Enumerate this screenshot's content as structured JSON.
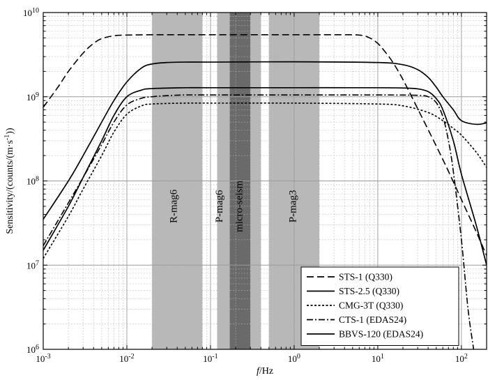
{
  "chart_data": {
    "type": "line",
    "xlabel_italic": "f",
    "xlabel_unit": "/Hz",
    "ylabel_prefix": "Sensitivity/(counts/(m·s",
    "ylabel_sup": "-1",
    "ylabel_suffix": "))",
    "x_scale": "log",
    "y_scale": "log",
    "xlim": [
      0.001,
      200
    ],
    "ylim": [
      1000000,
      10000000000
    ],
    "grid": true,
    "legend_position": "bottom-right",
    "x_ticks": [
      {
        "value": 0.001,
        "base": "10",
        "exp": "-3"
      },
      {
        "value": 0.01,
        "base": "10",
        "exp": "-2"
      },
      {
        "value": 0.1,
        "base": "10",
        "exp": "-1"
      },
      {
        "value": 1,
        "base": "10",
        "exp": "0"
      },
      {
        "value": 10,
        "base": "10",
        "exp": "1"
      },
      {
        "value": 100,
        "base": "10",
        "exp": "2"
      }
    ],
    "y_ticks": [
      {
        "value": 1000000,
        "base": "10",
        "exp": "6"
      },
      {
        "value": 10000000,
        "base": "10",
        "exp": "7"
      },
      {
        "value": 100000000,
        "base": "10",
        "exp": "8"
      },
      {
        "value": 1000000000,
        "base": "10",
        "exp": "9"
      },
      {
        "value": 10000000000,
        "base": "10",
        "exp": "10"
      }
    ],
    "bands": [
      {
        "label": "R-mag6",
        "x_range": [
          0.02,
          0.08
        ],
        "color": "#b8b8b8",
        "label_x": 0.037,
        "label_y": 50000000
      },
      {
        "label": "P-mag6",
        "x_range": [
          0.12,
          0.4
        ],
        "color": "#b8b8b8",
        "label_x": 0.13,
        "label_y": 50000000
      },
      {
        "label": "micro-seism",
        "x_range": [
          0.17,
          0.3
        ],
        "color": "#6a6a6a",
        "label_x": 0.225,
        "label_y": 50000000
      },
      {
        "label": "P-mag3",
        "x_range": [
          0.5,
          2
        ],
        "color": "#b8b8b8",
        "label_x": 0.98,
        "label_y": 50000000
      }
    ],
    "series": [
      {
        "name": "STS-1 (Q330)",
        "dash": "dashed",
        "x": [
          0.001,
          0.0015,
          0.002,
          0.003,
          0.004,
          0.005,
          0.007,
          0.01,
          0.02,
          0.05,
          0.1,
          0.5,
          1,
          3,
          6,
          8,
          10,
          12,
          15,
          20,
          30,
          50,
          70,
          100,
          150,
          200
        ],
        "y": [
          750000000,
          1300000000,
          2000000000,
          3300000000,
          4300000000,
          4900000000,
          5300000000,
          5400000000,
          5450000000,
          5450000000,
          5450000000,
          5450000000,
          5450000000,
          5450000000,
          5400000000,
          5000000000,
          4300000000,
          3500000000,
          2600000000,
          1600000000,
          720000000,
          260000000,
          130000000,
          60000000,
          25000000,
          13000000
        ]
      },
      {
        "name": "STS-2.5 (Q330)",
        "dash": "solid",
        "x": [
          0.001,
          0.002,
          0.003,
          0.005,
          0.007,
          0.01,
          0.015,
          0.02,
          0.03,
          0.05,
          0.1,
          1,
          10,
          20,
          30,
          40,
          50,
          60,
          80,
          100,
          150,
          200
        ],
        "y": [
          35000000,
          100000000,
          200000000,
          500000000,
          900000000,
          1500000000,
          2200000000,
          2450000000,
          2550000000,
          2580000000,
          2580000000,
          2600000000,
          2550000000,
          2400000000,
          2100000000,
          1700000000,
          1300000000,
          1000000000,
          700000000,
          520000000,
          470000000,
          490000000
        ]
      },
      {
        "name": "CMG-3T (Q330)",
        "dash": "dotted",
        "x": [
          0.001,
          0.002,
          0.003,
          0.005,
          0.007,
          0.01,
          0.015,
          0.02,
          0.05,
          0.1,
          1,
          10,
          20,
          40,
          60,
          80,
          100,
          150,
          200
        ],
        "y": [
          12000000,
          38000000,
          80000000,
          200000000,
          380000000,
          620000000,
          780000000,
          820000000,
          840000000,
          840000000,
          840000000,
          820000000,
          780000000,
          650000000,
          520000000,
          420000000,
          350000000,
          220000000,
          145000000
        ]
      },
      {
        "name": "CTS-1 (EDAS24)",
        "dash": "dashdot",
        "x": [
          0.001,
          0.002,
          0.003,
          0.005,
          0.007,
          0.01,
          0.015,
          0.02,
          0.03,
          0.05,
          0.1,
          1,
          10,
          30,
          40,
          50,
          60,
          70,
          80,
          100,
          120,
          140
        ],
        "y": [
          17000000,
          55000000,
          110000000,
          270000000,
          500000000,
          800000000,
          960000000,
          1000000000,
          1030000000,
          1050000000,
          1050000000,
          1050000000,
          1050000000,
          1040000000,
          1000000000,
          850000000,
          580000000,
          300000000,
          130000000,
          20000000,
          3000000,
          1000000
        ]
      },
      {
        "name": "BBVS-120 (EDAS24)",
        "dash": "solid",
        "x": [
          0.001,
          0.002,
          0.003,
          0.005,
          0.007,
          0.01,
          0.015,
          0.02,
          0.05,
          0.1,
          1,
          10,
          20,
          30,
          40,
          50,
          60,
          80,
          100,
          150,
          200
        ],
        "y": [
          15000000,
          50000000,
          110000000,
          300000000,
          600000000,
          1000000000,
          1200000000,
          1250000000,
          1280000000,
          1280000000,
          1280000000,
          1280000000,
          1270000000,
          1240000000,
          1150000000,
          950000000,
          700000000,
          300000000,
          120000000,
          30000000,
          10000000
        ]
      }
    ]
  }
}
